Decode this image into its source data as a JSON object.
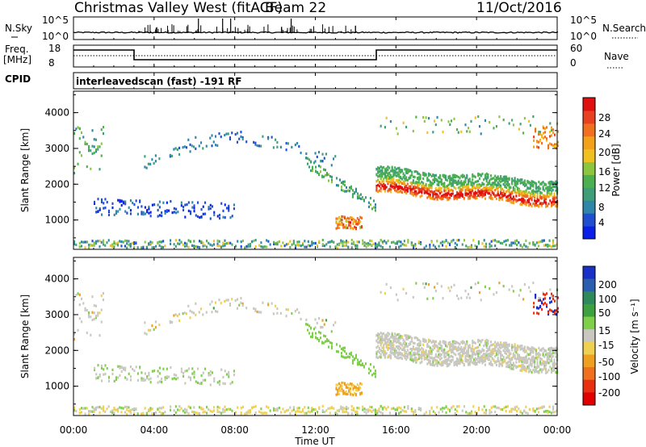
{
  "header": {
    "station": "Christmas Valley West (fitACF)",
    "beam": "Beam 22",
    "date": "11/Oct/2016"
  },
  "top_panels": {
    "nsky_label": "N.Sky",
    "nsearch_label": "N.Search",
    "nsky_ticks": [
      "10^5",
      "10^0"
    ],
    "nsearch_ticks": [
      "10^5",
      "10^0"
    ],
    "freq_label_1": "Freq.",
    "freq_label_2": "[MHz]",
    "freq_ticks": [
      "18",
      "8"
    ],
    "nave_label": "Nave",
    "nave_ticks": [
      "60",
      "0"
    ],
    "cpid_label": "CPID",
    "cpid_text": "interleavedscan (fast) -191 RF"
  },
  "chart_data": [
    {
      "type": "heatmap",
      "name": "power-panel",
      "ylabel": "Slant Range [km]",
      "ylim": [
        180,
        4600
      ],
      "yticks": [
        1000,
        2000,
        3000,
        4000
      ],
      "colorbar_label": "Power [dB]",
      "colorbar_ticks": [
        "4",
        "8",
        "12",
        "16",
        "20",
        "24",
        "28"
      ],
      "colorbar_colors": [
        "#0a20e8",
        "#1f4fd0",
        "#2f86a8",
        "#3f9d7a",
        "#4caf50",
        "#8cc63f",
        "#f0c020",
        "#f3a01a",
        "#f07020",
        "#e84020",
        "#e01010"
      ]
    },
    {
      "type": "heatmap",
      "name": "velocity-panel",
      "ylabel": "Slant Range [km]",
      "ylim": [
        180,
        4600
      ],
      "yticks": [
        1000,
        2000,
        3000,
        4000
      ],
      "colorbar_label": "Velocity [m s⁻¹]",
      "colorbar_ticks": [
        "200",
        "100",
        "50",
        "15",
        "-15",
        "-50",
        "-100",
        "-200"
      ],
      "colorbar_colors": [
        "#1830c8",
        "#2a5fb0",
        "#2e8a5a",
        "#3fa040",
        "#7fcf4a",
        "#c8c8c0",
        "#f0d050",
        "#f0a020",
        "#f07020",
        "#e83010",
        "#e00000"
      ]
    }
  ],
  "time_axis": {
    "xlabel": "Time UT",
    "ticks": [
      "00:00",
      "04:00",
      "08:00",
      "12:00",
      "16:00",
      "20:00",
      "00:00"
    ]
  }
}
